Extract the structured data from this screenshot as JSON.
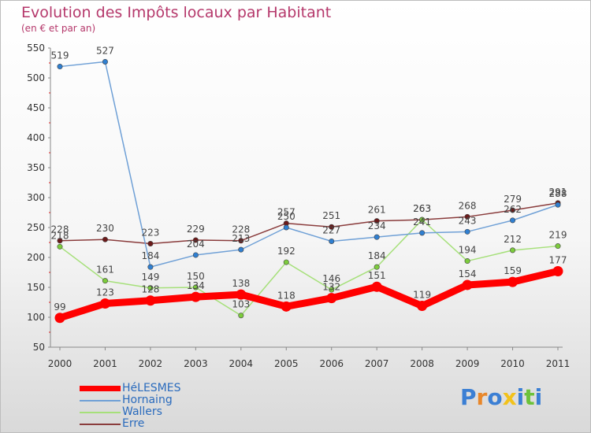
{
  "header": {
    "title": "Evolution des Impôts locaux par Habitant",
    "subtitle": "(en € et par an)"
  },
  "chart_data": {
    "type": "line",
    "title": "Evolution des Impôts locaux par Habitant",
    "subtitle": "(en € et par an)",
    "xlabel": "",
    "ylabel": "",
    "x": [
      "2000",
      "2001",
      "2002",
      "2003",
      "2004",
      "2005",
      "2006",
      "2007",
      "2008",
      "2009",
      "2010",
      "2011"
    ],
    "ylim": [
      50,
      550
    ],
    "yticks": [
      50,
      100,
      150,
      200,
      250,
      300,
      350,
      400,
      450,
      500,
      550
    ],
    "grid": false,
    "legend_position": "bottom-left",
    "series": [
      {
        "name": "HéLESMES",
        "color": "#ff0000",
        "marker_color": "#ff0000",
        "values": [
          99,
          123,
          128,
          134,
          138,
          118,
          132,
          151,
          119,
          154,
          159,
          177
        ]
      },
      {
        "name": "Hornaing",
        "color": "#6fa0d6",
        "marker_color": "#2f7fd1",
        "values": [
          519,
          527,
          184,
          204,
          213,
          250,
          227,
          234,
          241,
          243,
          262,
          288
        ]
      },
      {
        "name": "Wallers",
        "color": "#a6e07a",
        "marker_color": "#7ccc3c",
        "values": [
          218,
          161,
          149,
          150,
          103,
          192,
          146,
          184,
          263,
          194,
          212,
          219
        ]
      },
      {
        "name": "Erre",
        "color": "#8a3c3c",
        "marker_color": "#6b1a1a",
        "values": [
          228,
          230,
          223,
          229,
          228,
          257,
          251,
          261,
          263,
          268,
          279,
          291
        ]
      }
    ]
  },
  "logo": {
    "letters": [
      "P",
      "r",
      "o",
      "x",
      "i",
      "t",
      "i"
    ],
    "colors": [
      "#3b7fd4",
      "#e8872a",
      "#3b7fd4",
      "#f2c21b",
      "#3b7fd4",
      "#6cc23a",
      "#3b7fd4"
    ]
  }
}
